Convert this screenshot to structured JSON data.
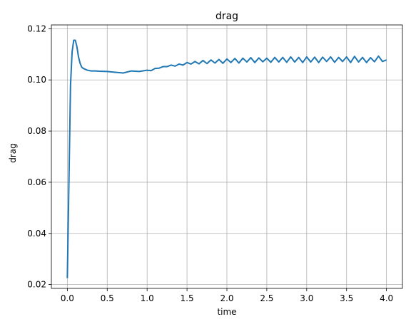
{
  "chart_data": {
    "type": "line",
    "title": "drag",
    "xlabel": "time",
    "ylabel": "drag",
    "xlim": [
      -0.2,
      4.2
    ],
    "ylim": [
      0.0185,
      0.1215
    ],
    "x_ticks": [
      0.0,
      0.5,
      1.0,
      1.5,
      2.0,
      2.5,
      3.0,
      3.5,
      4.0
    ],
    "x_tick_labels": [
      "0.0",
      "0.5",
      "1.0",
      "1.5",
      "2.0",
      "2.5",
      "3.0",
      "3.5",
      "4.0"
    ],
    "y_ticks": [
      0.02,
      0.04,
      0.06,
      0.08,
      0.1,
      0.12
    ],
    "y_tick_labels": [
      "0.02",
      "0.04",
      "0.06",
      "0.08",
      "0.10",
      "0.12"
    ],
    "grid": true,
    "colors": {
      "line": "#1f77b4"
    },
    "series": [
      {
        "x": [
          0.0,
          0.02,
          0.04,
          0.06,
          0.08,
          0.1,
          0.12,
          0.14,
          0.16,
          0.18,
          0.2,
          0.25,
          0.3,
          0.35,
          0.4,
          0.5,
          0.6,
          0.7,
          0.8,
          0.9,
          1.0,
          1.05,
          1.1,
          1.15,
          1.2,
          1.25,
          1.3,
          1.35,
          1.4,
          1.45,
          1.5,
          1.55,
          1.6,
          1.65,
          1.7,
          1.75,
          1.8,
          1.85,
          1.9,
          1.95,
          2.0,
          2.05,
          2.1,
          2.15,
          2.2,
          2.25,
          2.3,
          2.35,
          2.4,
          2.45,
          2.5,
          2.55,
          2.6,
          2.65,
          2.7,
          2.75,
          2.8,
          2.85,
          2.9,
          2.95,
          3.0,
          3.05,
          3.1,
          3.15,
          3.2,
          3.25,
          3.3,
          3.35,
          3.4,
          3.45,
          3.5,
          3.55,
          3.6,
          3.65,
          3.7,
          3.75,
          3.8,
          3.85,
          3.9,
          3.95,
          4.0
        ],
        "values": [
          0.0225,
          0.06,
          0.098,
          0.111,
          0.1155,
          0.1155,
          0.113,
          0.109,
          0.1065,
          0.105,
          0.1045,
          0.1038,
          0.1035,
          0.1035,
          0.1034,
          0.1033,
          0.103,
          0.1027,
          0.1035,
          0.1033,
          0.1038,
          0.1036,
          0.1045,
          0.1046,
          0.1052,
          0.1052,
          0.1058,
          0.1054,
          0.1062,
          0.1058,
          0.1068,
          0.1062,
          0.1072,
          0.1063,
          0.1076,
          0.1064,
          0.1078,
          0.1066,
          0.108,
          0.1065,
          0.1082,
          0.1068,
          0.1084,
          0.1066,
          0.1085,
          0.107,
          0.1087,
          0.1068,
          0.1086,
          0.1071,
          0.1085,
          0.1069,
          0.1088,
          0.107,
          0.1088,
          0.1069,
          0.109,
          0.107,
          0.1088,
          0.1068,
          0.109,
          0.107,
          0.1089,
          0.1068,
          0.1089,
          0.1072,
          0.109,
          0.1069,
          0.1088,
          0.1072,
          0.109,
          0.1068,
          0.1092,
          0.107,
          0.1088,
          0.1068,
          0.1087,
          0.1071,
          0.1093,
          0.1072,
          0.1078
        ]
      }
    ]
  }
}
